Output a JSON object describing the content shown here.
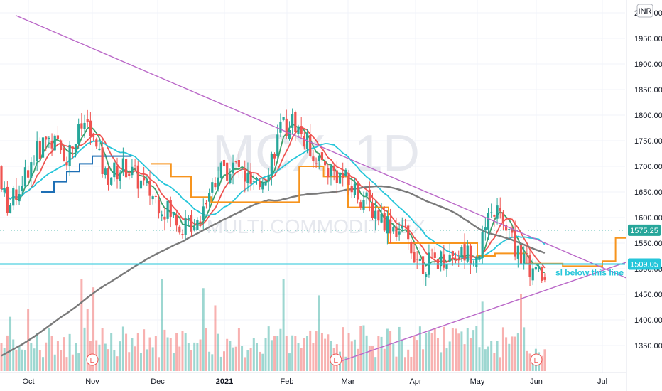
{
  "symbol_watermark": "MCX, 1D",
  "symbol_subtitle": "MULTI COMMODITY EX",
  "currency_label": "INR",
  "colors": {
    "up": "#26a69a",
    "down": "#ef5350",
    "ma_fast": "#ef5350",
    "ma_mid": "#3e9f6a",
    "ma_slow": "#26c6da",
    "ma_long": "#7a7a7a",
    "trendline": "#ba68c8",
    "support": "#26c6da",
    "step_orange": "#f7941d",
    "step_blue": "#1e6fb5",
    "last_price_bg": "#26a69a"
  },
  "chart_data": {
    "type": "candlestick",
    "title": "",
    "y_range": [
      1315,
      2030
    ],
    "x_labels": [
      "Oct",
      "Nov",
      "Dec",
      "2021",
      "Feb",
      "Mar",
      "Apr",
      "May",
      "Jun",
      "Jul"
    ],
    "y_ticks": [
      1350,
      1400,
      1450,
      1500,
      1550,
      1600,
      1650,
      1700,
      1750,
      1800,
      1850,
      1900,
      1950,
      2000
    ],
    "y_tick_labels": [
      "1350.00",
      "1400.00",
      "1450.00",
      "1500.00",
      "1550.00",
      "1600.00",
      "1650.00",
      "1700.00",
      "1750.00",
      "1800.00",
      "1850.00",
      "1900.00",
      "1950.00",
      "2000.00"
    ],
    "last_price": 1575.25,
    "last_price_label": "1575.25",
    "support_level": 1509.05,
    "support_label": "1509.05",
    "annotation": "sl below this line",
    "earnings_marker": "E",
    "earnings_markers_at_month": [
      1.0,
      4.8,
      8.0
    ],
    "close_anchors": [
      [
        -0.6,
        1700
      ],
      [
        -0.3,
        1620
      ],
      [
        0.0,
        1700
      ],
      [
        0.3,
        1760
      ],
      [
        0.6,
        1720
      ],
      [
        0.9,
        1790
      ],
      [
        1.2,
        1680
      ],
      [
        1.5,
        1700
      ],
      [
        1.8,
        1660
      ],
      [
        2.1,
        1620
      ],
      [
        2.4,
        1580
      ],
      [
        2.6,
        1600
      ],
      [
        2.9,
        1690
      ],
      [
        3.2,
        1700
      ],
      [
        3.5,
        1650
      ],
      [
        3.7,
        1700
      ],
      [
        3.9,
        1770
      ],
      [
        4.1,
        1790
      ],
      [
        4.3,
        1750
      ],
      [
        4.6,
        1700
      ],
      [
        4.9,
        1680
      ],
      [
        5.2,
        1640
      ],
      [
        5.5,
        1600
      ],
      [
        5.8,
        1570
      ],
      [
        6.1,
        1510
      ],
      [
        6.4,
        1520
      ],
      [
        6.7,
        1530
      ],
      [
        7.0,
        1530
      ],
      [
        7.3,
        1620
      ],
      [
        7.6,
        1550
      ],
      [
        7.9,
        1500
      ],
      [
        8.2,
        1470
      ],
      [
        8.5,
        1480
      ],
      [
        8.8,
        1500
      ],
      [
        9.1,
        1530
      ],
      [
        9.4,
        1600
      ],
      [
        9.6,
        1560
      ],
      [
        9.9,
        1560
      ],
      [
        10.1,
        1575
      ]
    ],
    "trendline_down": [
      [
        -0.2,
        1995
      ],
      [
        11.2,
        1380
      ]
    ],
    "trendline_up": [
      [
        4.9,
        1320
      ],
      [
        11.2,
        1595
      ]
    ],
    "step_lines": [
      {
        "color": "step_blue",
        "points": [
          [
            0.2,
            1650
          ],
          [
            0.4,
            1670
          ],
          [
            0.6,
            1690
          ],
          [
            0.8,
            1705
          ],
          [
            1.0,
            1720
          ],
          [
            1.6,
            1720
          ]
        ]
      },
      {
        "color": "step_orange",
        "points": [
          [
            1.9,
            1705
          ],
          [
            2.2,
            1680
          ],
          [
            2.5,
            1640
          ],
          [
            2.8,
            1630
          ],
          [
            4.2,
            1700
          ],
          [
            4.6,
            1680
          ],
          [
            5.0,
            1620
          ],
          [
            5.6,
            1550
          ],
          [
            6.5,
            1550
          ],
          [
            7.0,
            1525
          ],
          [
            7.3,
            1530
          ],
          [
            7.8,
            1510
          ],
          [
            8.4,
            1505
          ],
          [
            9.0,
            1515
          ],
          [
            9.2,
            1560
          ],
          [
            9.6,
            1565
          ]
        ]
      }
    ],
    "volume_relative": "bars at bottom, scaled to max"
  }
}
